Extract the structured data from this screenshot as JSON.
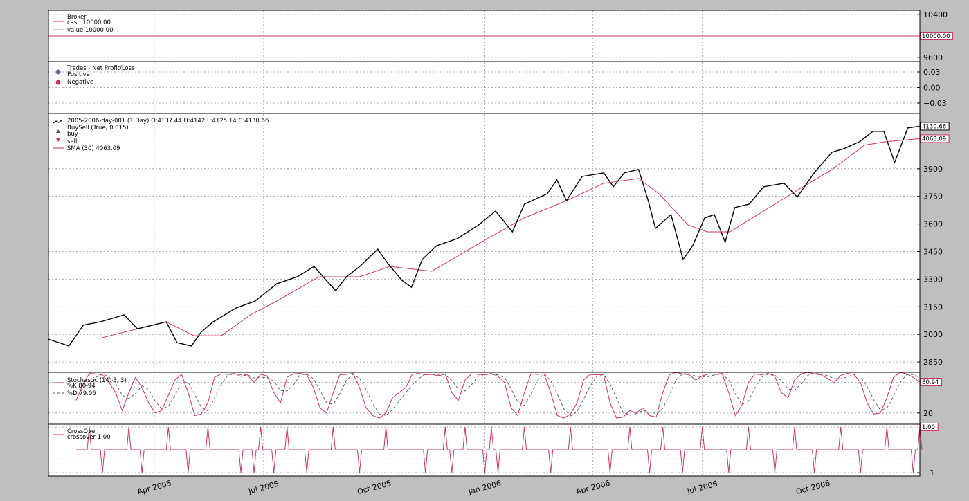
{
  "colors": {
    "figure_bg": "#bfbfbf",
    "axes_bg": "#ffffff",
    "price": "#000000",
    "accent": "#cc3366",
    "positive": "#666699",
    "negative": "#cc3355",
    "grid": "#999999"
  },
  "chart_data": [
    {
      "type": "line",
      "panel": "broker",
      "legend": {
        "title": "Broker",
        "entries": [
          "cash 10000.00",
          "value 10000.00"
        ]
      },
      "series": [
        {
          "name": "cash",
          "value": 10000.0
        },
        {
          "name": "value",
          "value": 10000.0
        }
      ],
      "ylim": [
        9520,
        10480
      ],
      "yticks": [
        9600,
        10400
      ],
      "ytick_labels": [
        "9600",
        "10400"
      ],
      "grid_y": [
        10400,
        10000,
        9600
      ],
      "tag": "10000.00",
      "grid": true
    },
    {
      "type": "scatter",
      "panel": "trades",
      "legend": {
        "title": "Trades - Net Profit/Loss",
        "entries": [
          "Positive",
          "Negative"
        ]
      },
      "points": [],
      "ylim": [
        -0.05,
        0.05
      ],
      "yticks": [
        0.03,
        0.0,
        -0.03
      ],
      "ytick_labels": [
        "0.03",
        "0.00",
        "−0.03"
      ],
      "grid": true
    },
    {
      "type": "line",
      "panel": "price",
      "legend": {
        "data": "2005-2006-day-001 (1 Day) O:4137.44 H:4142 L:4125.14 C:4130.66",
        "buysell_title": "BuySell (True, 0.015)",
        "buy": "buy",
        "sell": "sell",
        "sma": "SMA (30) 4063.09"
      },
      "ylim": [
        2794,
        4200
      ],
      "yticks": [
        2850,
        3000,
        3150,
        3300,
        3450,
        3600,
        3750,
        3900
      ],
      "ytick_labels": [
        "2850",
        "3000",
        "3150",
        "3300",
        "3450",
        "3600",
        "3750",
        "3900"
      ],
      "close_tag": "4130.66",
      "sma_tag": "4063.09",
      "close": [
        [
          "2005-01-03",
          2974
        ],
        [
          "2005-01-20",
          2937
        ],
        [
          "2005-02-01",
          3050
        ],
        [
          "2005-02-15",
          3068
        ],
        [
          "2005-03-07",
          3106
        ],
        [
          "2005-03-18",
          3030
        ],
        [
          "2005-04-11",
          3068
        ],
        [
          "2005-04-20",
          2955
        ],
        [
          "2005-05-02",
          2937
        ],
        [
          "2005-05-10",
          3012
        ],
        [
          "2005-05-20",
          3068
        ],
        [
          "2005-06-08",
          3143
        ],
        [
          "2005-06-24",
          3181
        ],
        [
          "2005-07-12",
          3275
        ],
        [
          "2005-07-29",
          3313
        ],
        [
          "2005-08-12",
          3369
        ],
        [
          "2005-08-22",
          3294
        ],
        [
          "2005-08-30",
          3238
        ],
        [
          "2005-09-08",
          3313
        ],
        [
          "2005-09-19",
          3369
        ],
        [
          "2005-10-04",
          3463
        ],
        [
          "2005-10-12",
          3388
        ],
        [
          "2005-10-24",
          3294
        ],
        [
          "2005-11-01",
          3256
        ],
        [
          "2005-11-10",
          3407
        ],
        [
          "2005-11-22",
          3482
        ],
        [
          "2005-12-09",
          3520
        ],
        [
          "2005-12-27",
          3595
        ],
        [
          "2006-01-10",
          3670
        ],
        [
          "2006-01-24",
          3557
        ],
        [
          "2006-02-03",
          3708
        ],
        [
          "2006-02-22",
          3764
        ],
        [
          "2006-03-02",
          3840
        ],
        [
          "2006-03-10",
          3726
        ],
        [
          "2006-03-23",
          3858
        ],
        [
          "2006-04-10",
          3877
        ],
        [
          "2006-04-18",
          3802
        ],
        [
          "2006-04-27",
          3877
        ],
        [
          "2006-05-09",
          3896
        ],
        [
          "2006-05-17",
          3726
        ],
        [
          "2006-05-23",
          3576
        ],
        [
          "2006-06-05",
          3651
        ],
        [
          "2006-06-15",
          3407
        ],
        [
          "2006-06-23",
          3482
        ],
        [
          "2006-07-03",
          3633
        ],
        [
          "2006-07-11",
          3651
        ],
        [
          "2006-07-20",
          3501
        ],
        [
          "2006-07-28",
          3689
        ],
        [
          "2006-08-09",
          3708
        ],
        [
          "2006-08-21",
          3802
        ],
        [
          "2006-09-07",
          3821
        ],
        [
          "2006-09-18",
          3746
        ],
        [
          "2006-10-02",
          3877
        ],
        [
          "2006-10-17",
          3990
        ],
        [
          "2006-10-27",
          4009
        ],
        [
          "2006-11-09",
          4047
        ],
        [
          "2006-11-20",
          4103
        ],
        [
          "2006-11-29",
          4103
        ],
        [
          "2006-12-08",
          3934
        ],
        [
          "2006-12-19",
          4122
        ],
        [
          "2006-12-29",
          4130.66
        ]
      ],
      "sma": [
        [
          "2005-02-14",
          2978
        ],
        [
          "2005-03-18",
          3030
        ],
        [
          "2005-04-11",
          3068
        ],
        [
          "2005-05-04",
          2993
        ],
        [
          "2005-05-27",
          2993
        ],
        [
          "2005-06-20",
          3106
        ],
        [
          "2005-07-12",
          3181
        ],
        [
          "2005-08-16",
          3313
        ],
        [
          "2005-09-19",
          3313
        ],
        [
          "2005-10-14",
          3369
        ],
        [
          "2005-11-18",
          3343
        ],
        [
          "2006-01-03",
          3520
        ],
        [
          "2006-02-03",
          3633
        ],
        [
          "2006-03-10",
          3726
        ],
        [
          "2006-04-10",
          3821
        ],
        [
          "2006-05-09",
          3847
        ],
        [
          "2006-05-26",
          3764
        ],
        [
          "2006-06-19",
          3595
        ],
        [
          "2006-07-05",
          3557
        ],
        [
          "2006-07-24",
          3557
        ],
        [
          "2006-08-21",
          3670
        ],
        [
          "2006-09-18",
          3783
        ],
        [
          "2006-10-17",
          3896
        ],
        [
          "2006-11-13",
          4028
        ],
        [
          "2006-12-01",
          4047
        ],
        [
          "2006-12-29",
          4063.09
        ]
      ],
      "x_start": "2005-01-03",
      "x_end": "2006-12-29",
      "xticks": [
        "2005-04-01",
        "2005-07-01",
        "2005-10-01",
        "2006-01-01",
        "2006-04-01",
        "2006-07-01",
        "2006-10-01"
      ],
      "xtick_labels": [
        "Apr 2005",
        "Jul 2005",
        "Oct 2005",
        "Jan 2006",
        "Apr 2006",
        "Jul 2006",
        "Oct 2006"
      ],
      "grid": true
    },
    {
      "type": "line",
      "panel": "stochastic",
      "legend": {
        "title": "Stochastic (14, 3, 3)",
        "k": "%K 80.94",
        "d": "%D 79.06"
      },
      "ylim": [
        -2,
        100
      ],
      "yticks": [
        20
      ],
      "ytick_labels": [
        "20"
      ],
      "grid_y": [
        80,
        20
      ],
      "tag": "80.94",
      "x_start": "2005-01-26",
      "x_end": "2006-12-29",
      "k": [
        45,
        75,
        98,
        97,
        95,
        80,
        60,
        25,
        60,
        90,
        70,
        40,
        20,
        25,
        55,
        85,
        96,
        60,
        15,
        18,
        40,
        90,
        97,
        96,
        98,
        92,
        95,
        80,
        96,
        93,
        60,
        40,
        90,
        97,
        98,
        95,
        70,
        30,
        20,
        60,
        95,
        96,
        98,
        70,
        30,
        15,
        10,
        20,
        50,
        60,
        70,
        96,
        98,
        95,
        96,
        93,
        97,
        60,
        45,
        85,
        97,
        96,
        95,
        98,
        92,
        80,
        30,
        15,
        60,
        97,
        96,
        97,
        60,
        15,
        10,
        18,
        40,
        85,
        96,
        95,
        96,
        40,
        10,
        12,
        25,
        20,
        30,
        15,
        12,
        60,
        95,
        100,
        97,
        95,
        85,
        93,
        97,
        96,
        98,
        60,
        15,
        35,
        80,
        97,
        95,
        98,
        92,
        60,
        50,
        85,
        97,
        100,
        97,
        95,
        88,
        80,
        94,
        98,
        96,
        80,
        40,
        18,
        20,
        50,
        90,
        100,
        97,
        90,
        80.94
      ],
      "d_last": 79.06,
      "grid": true
    },
    {
      "type": "line",
      "panel": "crossover",
      "legend": {
        "title": "CrossOver",
        "entry": "crossover 1.00"
      },
      "ylim": [
        -1.15,
        1.12
      ],
      "yticks": [
        -1
      ],
      "ytick_labels": [
        "−1"
      ],
      "grid_y": [
        1,
        -0.4,
        -1
      ],
      "tag": "1.00",
      "last": 1.0,
      "grid": true
    }
  ]
}
